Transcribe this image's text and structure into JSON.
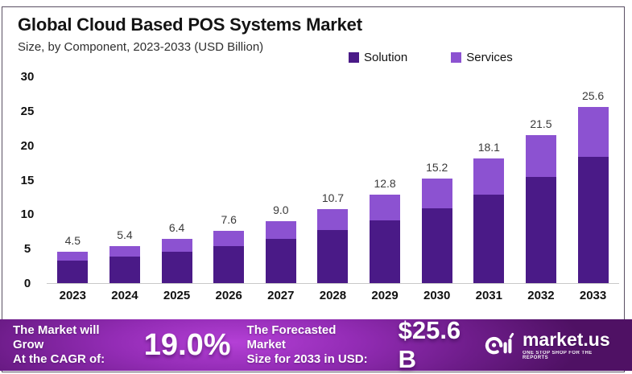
{
  "header": {
    "title": "Global Cloud Based POS Systems Market",
    "subtitle": "Size, by Component, 2023-2033 (USD Billion)"
  },
  "legend": [
    {
      "label": "Solution",
      "color": "#4a1a87"
    },
    {
      "label": "Services",
      "color": "#8c52d1"
    }
  ],
  "chart_data": {
    "type": "bar",
    "stacked": true,
    "title": "Global Cloud Based POS Systems Market",
    "subtitle": "Size, by Component, 2023-2033 (USD Billion)",
    "unit": "USD Billion",
    "categories": [
      "2023",
      "2024",
      "2025",
      "2026",
      "2027",
      "2028",
      "2029",
      "2030",
      "2031",
      "2032",
      "2033"
    ],
    "series": [
      {
        "name": "Solution",
        "color": "#4a1a87",
        "values": [
          3.3,
          3.9,
          4.6,
          5.4,
          6.4,
          7.7,
          9.1,
          10.8,
          12.9,
          15.4,
          18.3
        ]
      },
      {
        "name": "Services",
        "color": "#8c52d1",
        "values": [
          1.2,
          1.5,
          1.8,
          2.2,
          2.6,
          3.0,
          3.7,
          4.4,
          5.2,
          6.1,
          7.3
        ]
      }
    ],
    "totals": [
      4.5,
      5.4,
      6.4,
      7.6,
      9.0,
      10.7,
      12.8,
      15.2,
      18.1,
      21.5,
      25.6
    ],
    "yticks": [
      0,
      5,
      10,
      15,
      20,
      25,
      30
    ],
    "ylim": [
      0,
      30
    ],
    "xlabel": "",
    "ylabel": "",
    "grid": false,
    "legend_position": "top-right"
  },
  "footer": {
    "cagr_label_line1": "The Market will Grow",
    "cagr_label_line2": "At the CAGR of:",
    "cagr_value": "19.0%",
    "forecast_label_line1": "The Forecasted Market",
    "forecast_label_line2": "Size for 2033 in USD:",
    "forecast_value": "$25.6 B",
    "brand": "market.us",
    "brand_tagline": "ONE STOP SHOP FOR THE REPORTS"
  }
}
